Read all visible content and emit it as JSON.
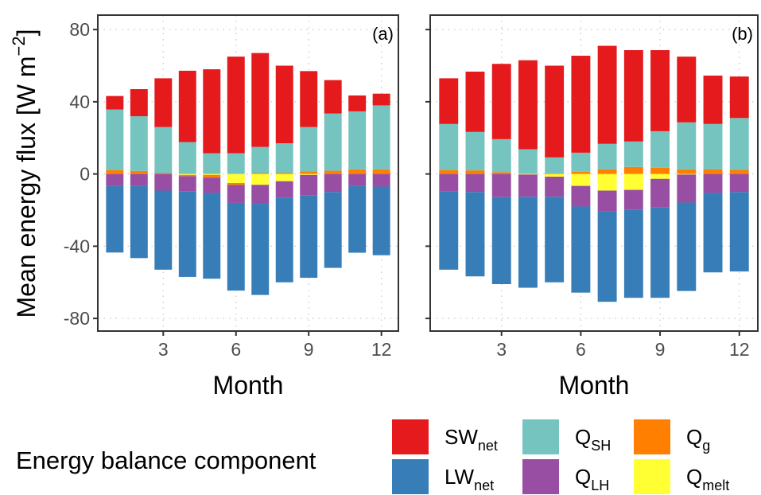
{
  "chart_data": [
    {
      "type": "bar",
      "stacked": true,
      "panel_label": "(a)",
      "xlabel": "Month",
      "ylabel": "Mean energy flux [W m^-2]",
      "ylim": [
        -87,
        88
      ],
      "yticks": [
        80,
        40,
        0,
        -40,
        -80
      ],
      "xticks": [
        3,
        6,
        9,
        12
      ],
      "xlim": [
        0.3,
        12.7
      ],
      "grid": true,
      "categories": [
        1,
        2,
        3,
        4,
        5,
        6,
        7,
        8,
        9,
        10,
        11,
        12
      ],
      "series": [
        {
          "name": "SWnet",
          "values": [
            7.5,
            15.0,
            27.0,
            39.5,
            46.5,
            53.5,
            52.0,
            43.0,
            31.0,
            18.5,
            8.8,
            6.5
          ]
        },
        {
          "name": "QSH",
          "values": [
            33.5,
            30.3,
            25.5,
            17.7,
            11.5,
            11.5,
            14.5,
            16.3,
            24.5,
            31.7,
            32.1,
            35.4
          ]
        },
        {
          "name": "Qg",
          "values": [
            2.2,
            1.7,
            0.5,
            -0.7,
            -1.5,
            -1.0,
            0.5,
            0.7,
            1.5,
            1.8,
            2.6,
            2.6
          ]
        },
        {
          "name": "Qmelt",
          "values": [
            0,
            0,
            0,
            -0.5,
            -0.5,
            -5.0,
            -6.0,
            -4.0,
            -0.5,
            0,
            0,
            0
          ]
        },
        {
          "name": "QLH",
          "values": [
            -6.6,
            -6.6,
            -9.2,
            -8.3,
            -8.5,
            -10.0,
            -10.5,
            -9.0,
            -11.2,
            -10.0,
            -6.6,
            -7.0
          ]
        },
        {
          "name": "LWnet",
          "values": [
            -36.9,
            -40.0,
            -43.8,
            -47.5,
            -47.5,
            -48.6,
            -50.5,
            -47.0,
            -45.8,
            -42.0,
            -37.0,
            -38.0
          ]
        }
      ]
    },
    {
      "type": "bar",
      "stacked": true,
      "panel_label": "(b)",
      "xlabel": "Month",
      "ylabel": "Mean energy flux [W m^-2]",
      "ylim": [
        -87,
        88
      ],
      "yticks": [
        80,
        40,
        0,
        -40,
        -80
      ],
      "xticks": [
        3,
        6,
        9,
        12
      ],
      "xlim": [
        0.3,
        12.7
      ],
      "grid": true,
      "categories": [
        1,
        2,
        3,
        4,
        5,
        6,
        7,
        8,
        9,
        10,
        11,
        12
      ],
      "series": [
        {
          "name": "SWnet",
          "values": [
            25.3,
            33.4,
            41.7,
            49.3,
            50.8,
            53.7,
            54.3,
            50.6,
            44.9,
            36.4,
            26.8,
            23.0
          ]
        },
        {
          "name": "QSH",
          "values": [
            25.5,
            21.3,
            18.3,
            13.5,
            8.9,
            10.5,
            14.1,
            14.1,
            20.3,
            26.0,
            25.2,
            28.7
          ]
        },
        {
          "name": "Qg",
          "values": [
            2.2,
            2.0,
            1.0,
            0.2,
            0.3,
            1.3,
            2.6,
            3.9,
            3.4,
            2.6,
            2.5,
            2.3
          ]
        },
        {
          "name": "Qmelt",
          "values": [
            0,
            0,
            0,
            -0.3,
            -1.5,
            -6.6,
            -9.2,
            -8.8,
            -2.7,
            -0.3,
            0,
            0
          ]
        },
        {
          "name": "QLH",
          "values": [
            -9.7,
            -10.0,
            -12.8,
            -12.3,
            -11.1,
            -11.4,
            -11.5,
            -11.1,
            -15.9,
            -15.5,
            -10.5,
            -10.0
          ]
        },
        {
          "name": "LWnet",
          "values": [
            -43.3,
            -46.7,
            -48.2,
            -50.4,
            -47.4,
            -47.7,
            -50.1,
            -48.7,
            -50.0,
            -49.0,
            -44.0,
            -44.0
          ]
        }
      ]
    }
  ],
  "axes": {
    "ylabel_main": "Mean energy flux [W m",
    "ylabel_sup": "−2",
    "ylabel_end": "]",
    "xlabel": "Month",
    "ytick_labels": [
      "80",
      "40",
      "0",
      "-40",
      "-80"
    ],
    "xtick_labels": [
      "3",
      "6",
      "9",
      "12"
    ]
  },
  "legend": {
    "title": "Energy balance component",
    "items": [
      {
        "key": "SWnet",
        "base": "SW",
        "sub": "net",
        "color": "#E41A1C"
      },
      {
        "key": "LWnet",
        "base": "LW",
        "sub": "net",
        "color": "#377EB8"
      },
      {
        "key": "QSH",
        "base": "Q",
        "sub": "SH",
        "color": "#76C4C0"
      },
      {
        "key": "QLH",
        "base": "Q",
        "sub": "LH",
        "color": "#984EA3"
      },
      {
        "key": "Qg",
        "base": "Q",
        "sub": "g",
        "color": "#FF7F00"
      },
      {
        "key": "Qmelt",
        "base": "Q",
        "sub": "melt",
        "color": "#FFFF33"
      }
    ]
  }
}
